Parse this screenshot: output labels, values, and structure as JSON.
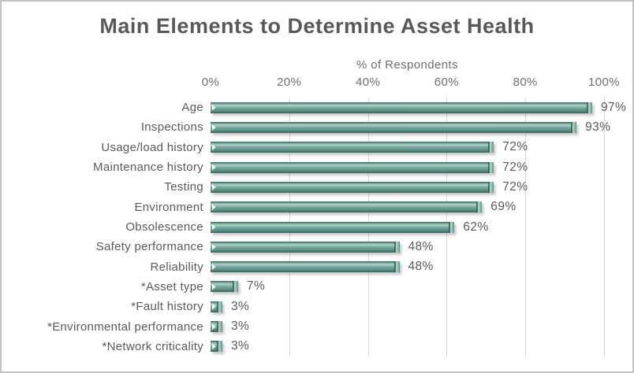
{
  "frame": {
    "background": "#ffffff",
    "border_color": "#c3c3c3"
  },
  "chart_data": {
    "type": "bar",
    "orientation": "horizontal",
    "title": "Main Elements to Determine Asset Health",
    "xlabel": "% of Respondents",
    "categories": [
      "Age",
      "Inspections",
      "Usage/load history",
      "Maintenance history",
      "Testing",
      "Environment",
      "Obsolescence",
      "Safety performance",
      "Reliability",
      "*Asset type",
      "*Fault history",
      "*Environmental performance",
      "*Network criticality"
    ],
    "values": [
      97,
      93,
      72,
      72,
      72,
      69,
      62,
      48,
      48,
      7,
      3,
      3,
      3
    ],
    "value_labels": [
      "97%",
      "93%",
      "72%",
      "72%",
      "72%",
      "69%",
      "62%",
      "48%",
      "48%",
      "7%",
      "3%",
      "3%",
      "3%"
    ],
    "x_ticks": [
      "0%",
      "20%",
      "40%",
      "60%",
      "80%",
      "100%"
    ],
    "x_tick_values": [
      0,
      20,
      40,
      60,
      80,
      100
    ],
    "xlim": [
      0,
      100
    ],
    "grid": true,
    "legend": "none",
    "colors": {
      "bar_body": "#6b9c92",
      "bar_highlight": "#aed0c8",
      "bar_dark_edge": "#35645b",
      "gridline": "#d6d6d6",
      "title_text": "#595959",
      "axis_text": "#6e6e6e"
    }
  }
}
